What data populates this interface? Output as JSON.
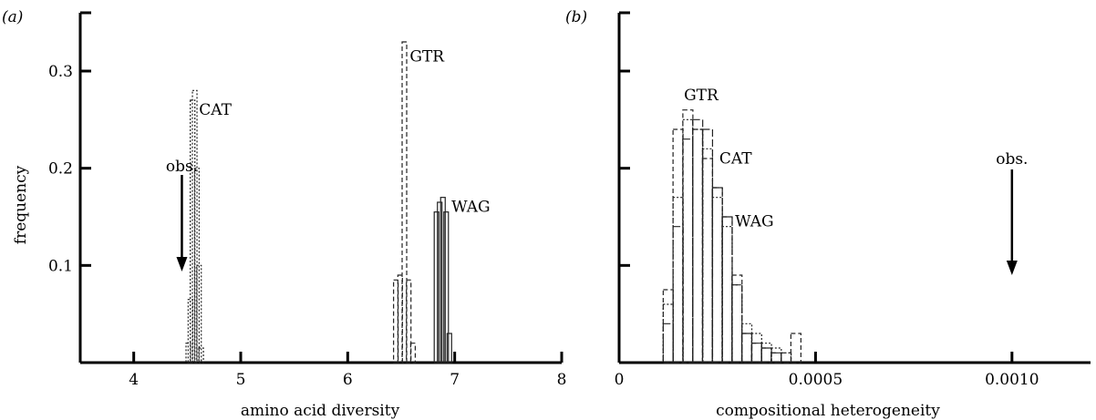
{
  "panels": [
    {
      "id": "a",
      "label": "(a)",
      "xlabel": "amino acid diversity",
      "ylabel": "frequency",
      "xlim": [
        3.5,
        8
      ],
      "ylim": [
        0,
        0.36
      ],
      "xticks": [
        4,
        5,
        6,
        7,
        8
      ],
      "yticks": [
        0.1,
        0.2,
        0.3
      ],
      "obs": {
        "label": "obs.",
        "x": 4.45
      },
      "series": [
        {
          "name": "CAT",
          "x": [
            4.51,
            4.53,
            4.55,
            4.57,
            4.59,
            4.61,
            4.63
          ],
          "values": [
            0.02,
            0.065,
            0.27,
            0.28,
            0.2,
            0.1,
            0.015
          ],
          "dash": "2,2",
          "label_at": [
            4.61,
            0.255
          ]
        },
        {
          "name": "GTR",
          "x": [
            6.45,
            6.49,
            6.53,
            6.57,
            6.61
          ],
          "values": [
            0.085,
            0.09,
            0.33,
            0.085,
            0.02
          ],
          "dash": "5,3",
          "label_at": [
            6.58,
            0.31
          ]
        },
        {
          "name": "WAG",
          "x": [
            6.83,
            6.86,
            6.89,
            6.92,
            6.95
          ],
          "values": [
            0.155,
            0.165,
            0.17,
            0.155,
            0.03
          ],
          "dash": "",
          "label_at": [
            6.97,
            0.155
          ]
        }
      ]
    },
    {
      "id": "b",
      "label": "(b)",
      "xlabel": "compositional heterogeneity",
      "ylabel": "",
      "xlim": [
        0,
        0.0012
      ],
      "ylim": [
        0,
        0.36
      ],
      "xticks": [
        0,
        0.0005,
        0.001
      ],
      "xticklabels": [
        "0",
        "0.0005",
        "0.0010"
      ],
      "yticks": [
        0.1,
        0.2,
        0.3
      ],
      "obs": {
        "label": "obs.",
        "x": 0.001
      },
      "series": [
        {
          "name": "GTR",
          "x": [
            0.000125,
            0.00015,
            0.000175,
            0.0002,
            0.000225,
            0.00025,
            0.000275,
            0.0003,
            0.000325,
            0.00035,
            0.000375,
            0.0004,
            0.000425,
            0.00045
          ],
          "values": [
            0.075,
            0.24,
            0.26,
            0.24,
            0.21,
            0.18,
            0.15,
            0.09,
            0.03,
            0.02,
            0.015,
            0.01,
            0.01,
            0.03
          ],
          "dash": "5,3",
          "label_at": [
            0.000165,
            0.27
          ]
        },
        {
          "name": "CAT",
          "x": [
            0.000125,
            0.00015,
            0.000175,
            0.0002,
            0.000225,
            0.00025,
            0.000275,
            0.0003,
            0.000325,
            0.00035,
            0.000375,
            0.0004,
            0.000425
          ],
          "values": [
            0.06,
            0.17,
            0.25,
            0.24,
            0.22,
            0.17,
            0.14,
            0.08,
            0.04,
            0.03,
            0.02,
            0.015,
            0.01
          ],
          "dash": "2,2",
          "label_at": [
            0.000255,
            0.205
          ]
        },
        {
          "name": "WAG",
          "x": [
            0.000125,
            0.00015,
            0.000175,
            0.0002,
            0.000225,
            0.00025,
            0.000275,
            0.0003,
            0.000325,
            0.00035,
            0.000375,
            0.0004
          ],
          "values": [
            0.04,
            0.14,
            0.23,
            0.25,
            0.24,
            0.18,
            0.15,
            0.08,
            0.03,
            0.02,
            0.015,
            0.01
          ],
          "dash": "8,3",
          "label_at": [
            0.000295,
            0.14
          ]
        }
      ]
    }
  ]
}
